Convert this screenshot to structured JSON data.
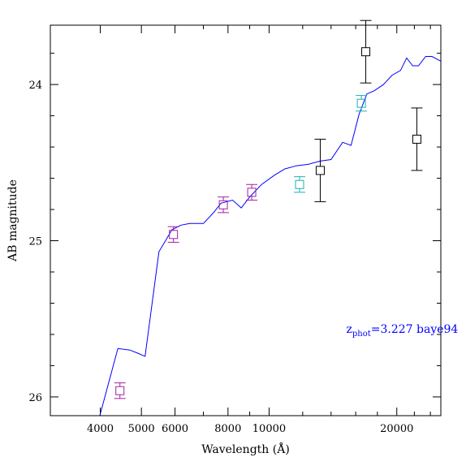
{
  "chart_data": {
    "type": "scatter",
    "xlabel": "Wavelength (Å)",
    "ylabel": "AB magnitude",
    "x_scale": "log",
    "xlim": [
      3050,
      25400
    ],
    "ylim": [
      26.12,
      23.62
    ],
    "x_ticks_labeled": [
      {
        "value": 4000,
        "label": "4000"
      },
      {
        "value": 5000,
        "label": "5000"
      },
      {
        "value": 6000,
        "label": "6000"
      },
      {
        "value": 8000,
        "label": "8000"
      },
      {
        "value": 10000,
        "label": "10000"
      },
      {
        "value": 20000,
        "label": "20000"
      }
    ],
    "y_ticks_labeled": [
      {
        "value": 24,
        "label": "24"
      },
      {
        "value": 25,
        "label": "25"
      },
      {
        "value": 26,
        "label": "26"
      }
    ],
    "annotation": {
      "main": "z",
      "subscript": "phot",
      "rest": "=3.227 baye94",
      "color": "#0000ff",
      "x": 15200,
      "y": 25.59
    },
    "template_color": "#0000ff",
    "template": {
      "x": [
        3900,
        4400,
        4700,
        4900,
        5100,
        5500,
        5700,
        5900,
        6200,
        6500,
        7000,
        7400,
        7700,
        8200,
        8600,
        9000,
        9600,
        10300,
        10900,
        11600,
        12400,
        13200,
        14000,
        14900,
        15600,
        16300,
        17000,
        17700,
        18600,
        19500,
        20400,
        21100,
        21800,
        22500,
        23400,
        24200,
        25400
      ],
      "y": [
        26.22,
        25.69,
        25.7,
        25.72,
        25.74,
        25.07,
        25.0,
        24.93,
        24.9,
        24.89,
        24.89,
        24.82,
        24.76,
        24.74,
        24.79,
        24.72,
        24.64,
        24.58,
        24.54,
        24.52,
        24.51,
        24.49,
        24.48,
        24.37,
        24.39,
        24.19,
        24.06,
        24.04,
        24.0,
        23.94,
        23.91,
        23.83,
        23.88,
        23.88,
        23.82,
        23.82,
        23.85
      ]
    },
    "series": [
      {
        "color": "#a020a0",
        "points": [
          {
            "x": 4450,
            "y": 25.96,
            "err": 0.05
          },
          {
            "x": 5950,
            "y": 24.96,
            "err": 0.05
          },
          {
            "x": 7800,
            "y": 24.77,
            "err": 0.05
          },
          {
            "x": 9100,
            "y": 24.69,
            "err": 0.05
          }
        ]
      },
      {
        "color": "#20b0b0",
        "points": [
          {
            "x": 11800,
            "y": 24.64,
            "err": 0.05
          },
          {
            "x": 16500,
            "y": 24.12,
            "err": 0.05
          }
        ]
      },
      {
        "color": "#000000",
        "points": [
          {
            "x": 13200,
            "y": 24.55,
            "err": 0.2
          },
          {
            "x": 16900,
            "y": 23.79,
            "err": 0.2
          },
          {
            "x": 22300,
            "y": 24.35,
            "err": 0.2
          }
        ]
      }
    ]
  }
}
